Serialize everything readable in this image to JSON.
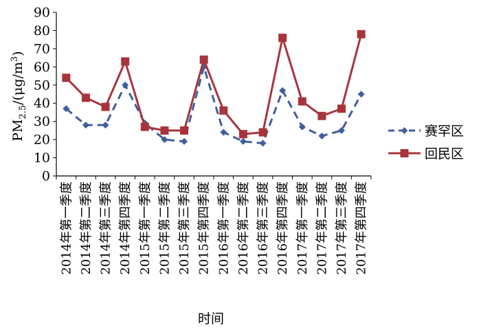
{
  "chart_data": {
    "type": "line",
    "ylabel": "PM2.5/(μg/m3)",
    "ylabel_parts": {
      "main": "PM",
      "sub": "2.5",
      "mid": "/(μg/m",
      "sup": "3",
      "end": ")"
    },
    "xlabel": "时间",
    "ylim": [
      0,
      90
    ],
    "yticks": [
      0,
      10,
      20,
      30,
      40,
      50,
      60,
      70,
      80,
      90
    ],
    "grid": false,
    "legend_position": "right",
    "categories": [
      "2014年第一季度",
      "2014年第二季度",
      "2014年第三季度",
      "2014年第四季度",
      "2015年第一季度",
      "2015年第二季度",
      "2015年第三季度",
      "2015年第四季度",
      "2016年第一季度",
      "2016年第二季度",
      "2016年第三季度",
      "2016年第四季度",
      "2017年第一季度",
      "2017年第二季度",
      "2017年第三季度",
      "2017年第四季度"
    ],
    "series": [
      {
        "name": "赛罕区",
        "color": "#3F5E9E",
        "line_style": "dashed",
        "marker": "diamond",
        "values": [
          37,
          28,
          28,
          50,
          29,
          20,
          19,
          60,
          24,
          19,
          18,
          47,
          27,
          22,
          25,
          45
        ]
      },
      {
        "name": "回民区",
        "color": "#A7343B",
        "line_style": "solid",
        "marker": "square",
        "values": [
          54,
          43,
          38,
          63,
          27,
          25,
          25,
          64,
          36,
          23,
          24,
          76,
          41,
          33,
          37,
          78
        ]
      }
    ]
  }
}
